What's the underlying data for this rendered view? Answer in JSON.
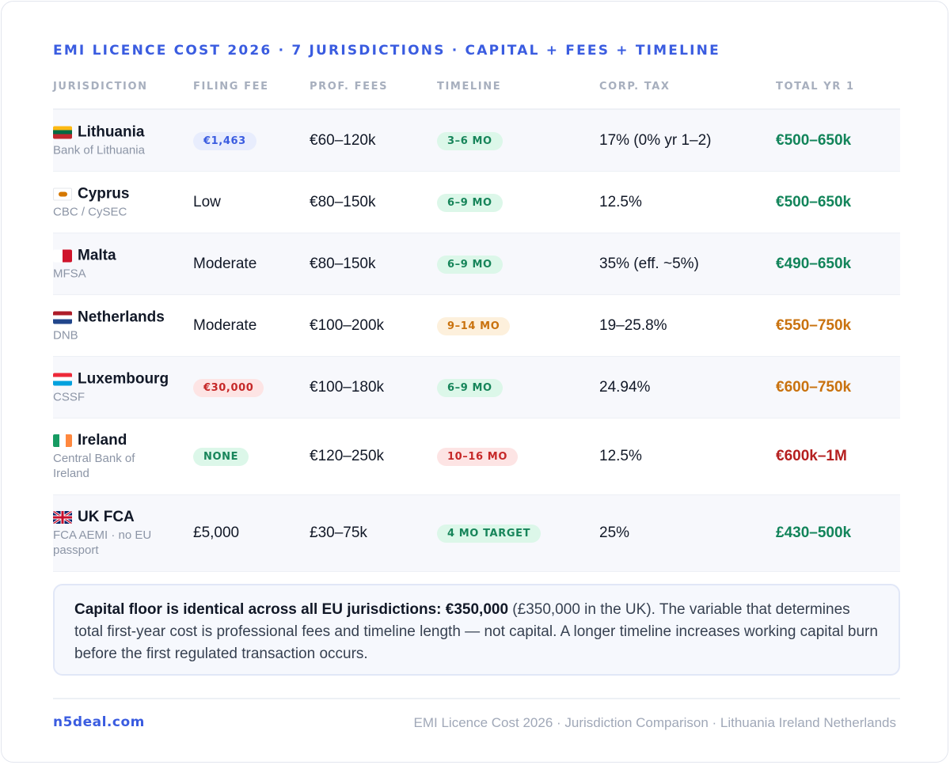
{
  "title": "EMI LICENCE COST 2026 · 7 JURISDICTIONS · CAPITAL + FEES + TIMELINE",
  "columns": [
    "JURISDICTION",
    "FILING FEE",
    "PROF. FEES",
    "TIMELINE",
    "CORP. TAX",
    "TOTAL YR 1"
  ],
  "rows": [
    {
      "name": "Lithuania",
      "regulator": "Bank of Lithuania",
      "filing_fee": "€1,463",
      "filing_style": "pill-blue",
      "prof_fees": "€60–120k",
      "timeline": "3–6 MO",
      "timeline_tone": "green",
      "corp_tax": "17% (0% yr 1–2)",
      "total": "€500–650k",
      "total_tone": "green",
      "flag": "lithuania-flag",
      "shade": true
    },
    {
      "name": "Cyprus",
      "regulator": "CBC / CySEC",
      "filing_fee": "Low",
      "filing_style": "text",
      "prof_fees": "€80–150k",
      "timeline": "6–9 MO",
      "timeline_tone": "green",
      "corp_tax": "12.5%",
      "total": "€500–650k",
      "total_tone": "green",
      "flag": "cyprus-flag",
      "shade": false
    },
    {
      "name": "Malta",
      "regulator": "MFSA",
      "filing_fee": "Moderate",
      "filing_style": "text",
      "prof_fees": "€80–150k",
      "timeline": "6–9 MO",
      "timeline_tone": "green",
      "corp_tax": "35% (eff. ~5%)",
      "total": "€490–650k",
      "total_tone": "green",
      "flag": "malta-flag",
      "shade": true
    },
    {
      "name": "Netherlands",
      "regulator": "DNB",
      "filing_fee": "Moderate",
      "filing_style": "text",
      "prof_fees": "€100–200k",
      "timeline": "9–14 MO",
      "timeline_tone": "amber",
      "corp_tax": "19–25.8%",
      "total": "€550–750k",
      "total_tone": "amber",
      "flag": "netherlands-flag",
      "shade": false
    },
    {
      "name": "Luxembourg",
      "regulator": "CSSF",
      "filing_fee": "€30,000",
      "filing_style": "pill-red",
      "prof_fees": "€100–180k",
      "timeline": "6–9 MO",
      "timeline_tone": "green",
      "corp_tax": "24.94%",
      "total": "€600–750k",
      "total_tone": "amber",
      "flag": "luxembourg-flag",
      "shade": true
    },
    {
      "name": "Ireland",
      "regulator": "Central Bank of Ireland",
      "filing_fee": "NONE",
      "filing_style": "pill-green",
      "prof_fees": "€120–250k",
      "timeline": "10–16 MO",
      "timeline_tone": "red",
      "corp_tax": "12.5%",
      "total": "€600k–1M",
      "total_tone": "red",
      "flag": "ireland-flag",
      "shade": false
    },
    {
      "name": "UK FCA",
      "regulator": "FCA AEMI · no EU passport",
      "filing_fee": "£5,000",
      "filing_style": "text",
      "prof_fees": "£30–75k",
      "timeline": "4 MO TARGET",
      "timeline_tone": "green",
      "corp_tax": "25%",
      "total": "£430–500k",
      "total_tone": "green",
      "flag": "uk-flag",
      "shade": true
    }
  ],
  "note": {
    "bold": "Capital floor is identical across all EU jurisdictions: €350,000",
    "text": " (£350,000 in the UK). The variable that determines total first-year cost is professional fees and timeline length — not capital. A longer timeline increases working capital burn before the first regulated transaction occurs."
  },
  "footer": {
    "brand": "n5deal.com",
    "credit": "EMI Licence Cost 2026 · Jurisdiction Comparison · Lithuania Ireland Netherlands"
  },
  "colors": {
    "accent": "#3a5ce0",
    "green": "#12845a",
    "amber": "#c9720e",
    "red": "#b51f1f"
  }
}
